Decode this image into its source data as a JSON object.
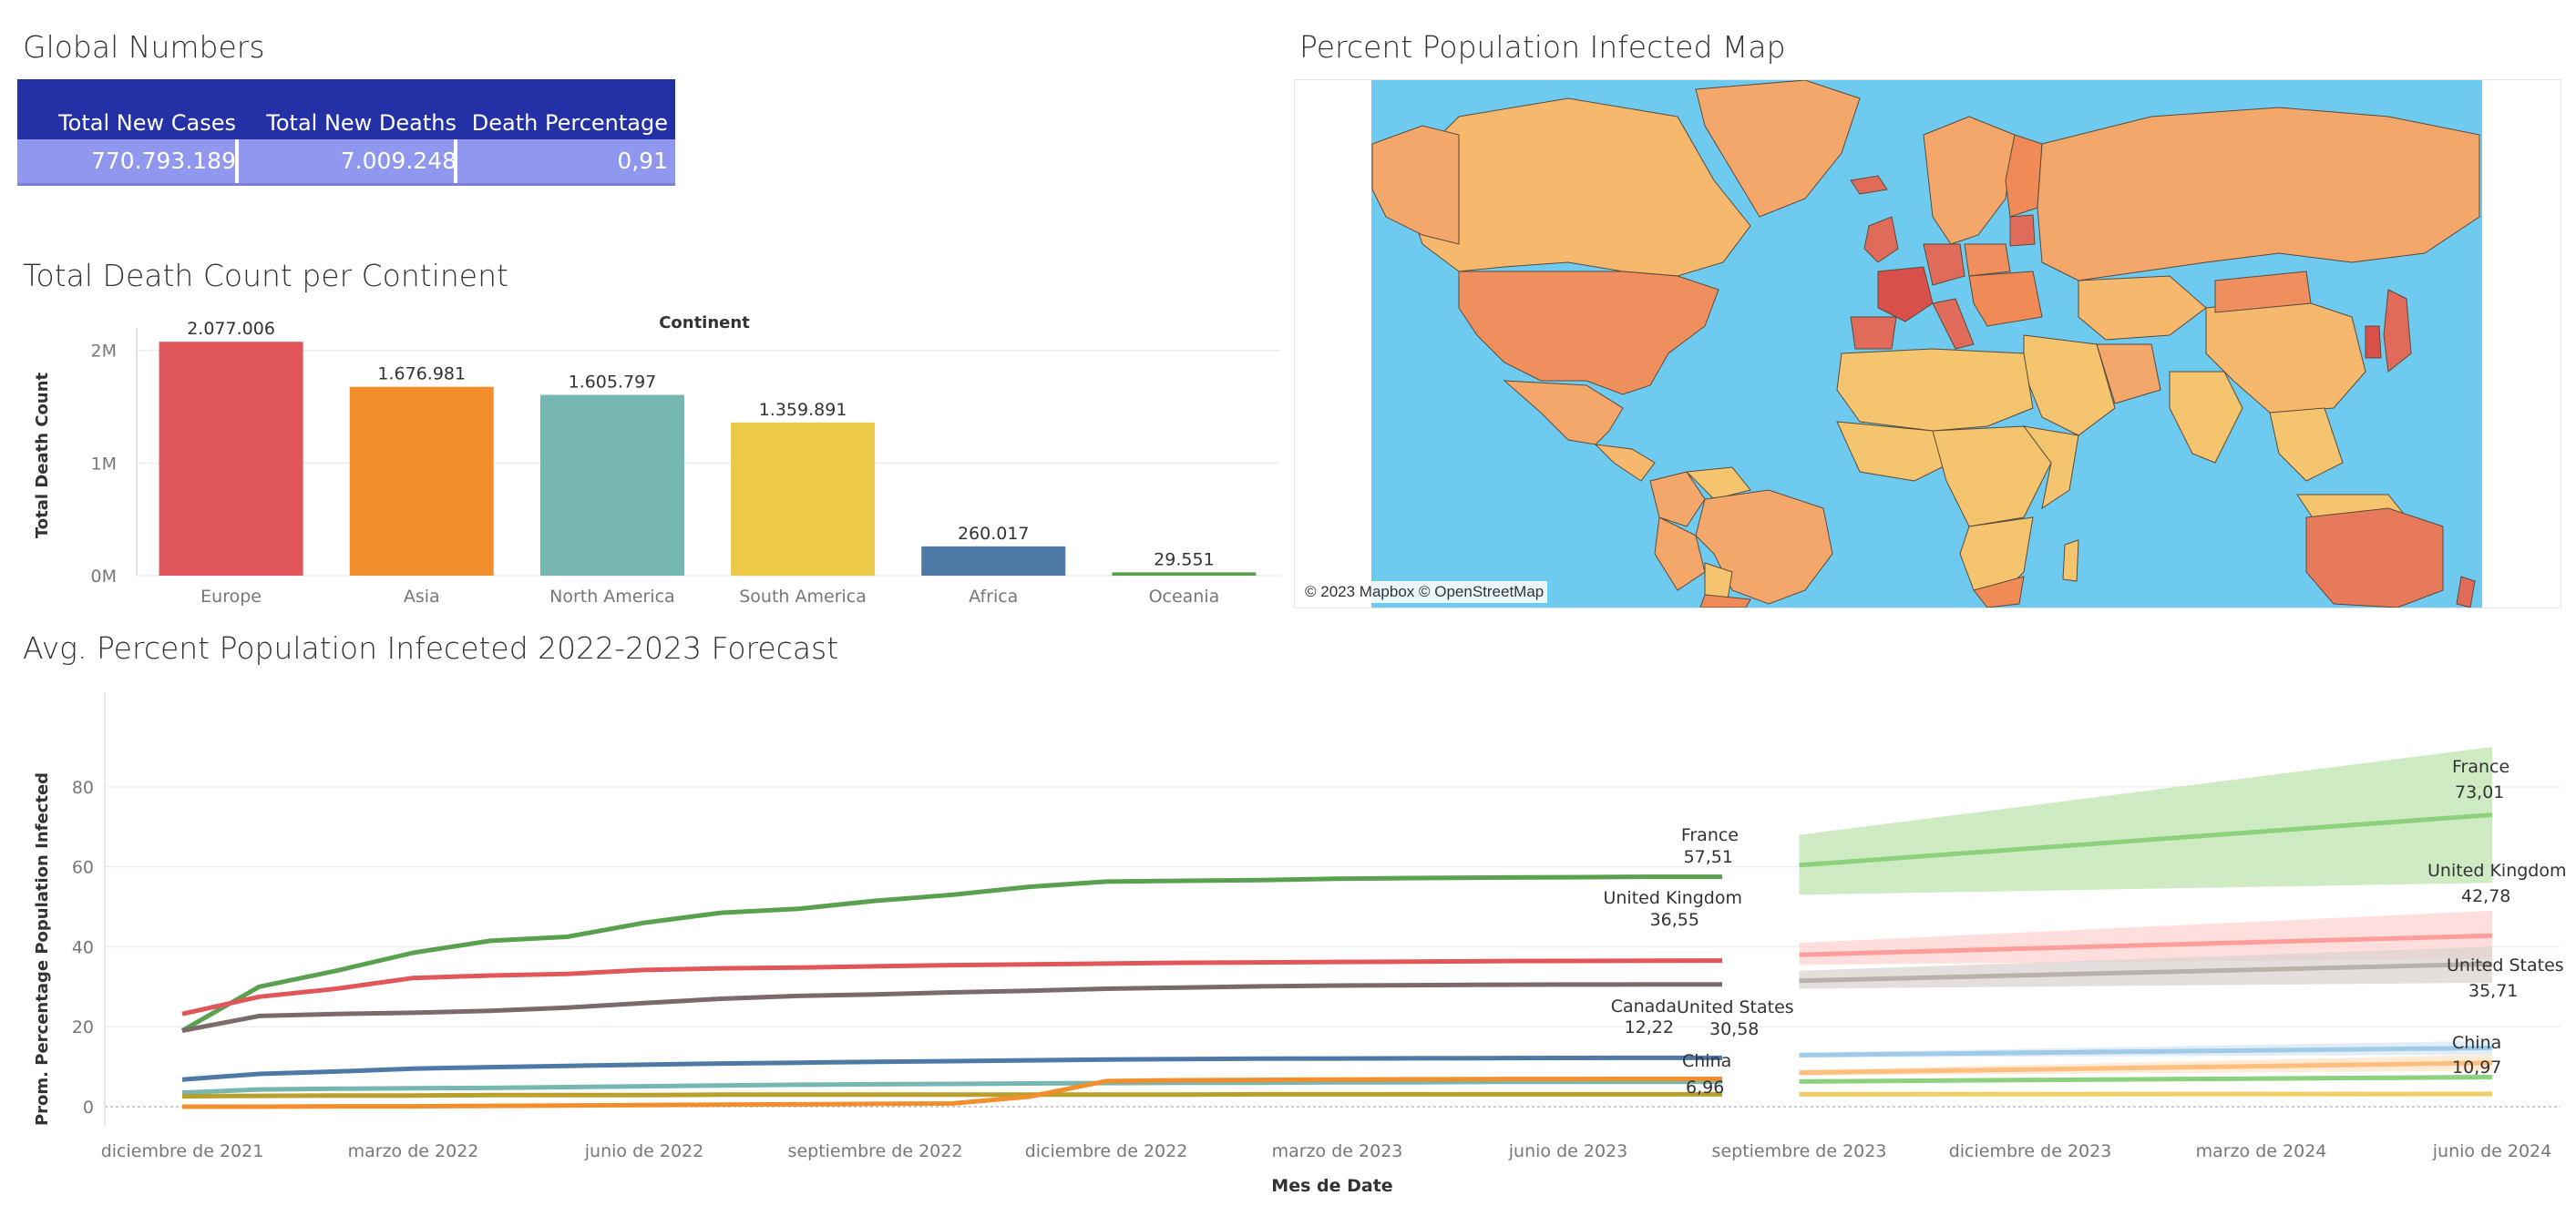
{
  "global_numbers": {
    "title": "Global Numbers",
    "headers": [
      "Total New Cases",
      "Total New Deaths",
      "Death Percentage"
    ],
    "values": [
      "770.793.189",
      "7.009.248",
      "0,91"
    ],
    "header_color": "#2330a6",
    "row_color": "#8f97ef"
  },
  "death_chart": {
    "title": "Total Death Count per Continent",
    "legend_title": "Continent",
    "ylabel": "Total Death Count",
    "yticks": [
      "0M",
      "1M",
      "2M"
    ],
    "chart_data": {
      "type": "bar",
      "categories": [
        "Europe",
        "Asia",
        "North America",
        "South America",
        "Africa",
        "Oceania"
      ],
      "values": [
        2077006,
        1676981,
        1605797,
        1359891,
        260017,
        29551
      ],
      "labels": [
        "2.077.006",
        "1.676.981",
        "1.605.797",
        "1.359.891",
        "260.017",
        "29.551"
      ],
      "colors": [
        "#e0555a",
        "#f28e2c",
        "#76b7b2",
        "#edc948",
        "#4e79a7",
        "#59a14f"
      ],
      "ylim": [
        0,
        2200000
      ]
    }
  },
  "map": {
    "title": "Percent Population Infected Map",
    "attribution": "© 2023 Mapbox © OpenStreetMap",
    "ocean_color": "#6ecbef"
  },
  "forecast": {
    "title": "Avg. Percent Population Infeceted 2022-2023 Forecast",
    "xlabel": "Mes de Date",
    "ylabel": "Prom. Percentage Population Infected",
    "yticks": [
      "0",
      "20",
      "40",
      "60",
      "80"
    ],
    "xticks": [
      "diciembre de 2021",
      "marzo de 2022",
      "junio de 2022",
      "septiembre de 2022",
      "diciembre de 2022",
      "marzo de 2023",
      "junio de 2023",
      "septiembre de 2023",
      "diciembre de 2023",
      "marzo de 2024",
      "junio de 2024"
    ],
    "chart_data": {
      "type": "line",
      "x": [
        "2021-12",
        "2022-01",
        "2022-02",
        "2022-03",
        "2022-04",
        "2022-05",
        "2022-06",
        "2022-07",
        "2022-08",
        "2022-09",
        "2022-10",
        "2022-11",
        "2022-12",
        "2023-01",
        "2023-02",
        "2023-03",
        "2023-04",
        "2023-05",
        "2023-06",
        "2023-07",
        "2023-08"
      ],
      "ylim": [
        0,
        90
      ],
      "series": [
        {
          "name": "France",
          "color": "#59a14f",
          "values": [
            19,
            30,
            34,
            38.5,
            41.5,
            42.5,
            46,
            48.5,
            49.5,
            51.5,
            53,
            55,
            56.3,
            56.5,
            56.7,
            57,
            57.2,
            57.3,
            57.4,
            57.5,
            57.51
          ]
        },
        {
          "name": "United Kingdom",
          "color": "#e15759",
          "values": [
            23.2,
            27.5,
            29.5,
            32.2,
            32.8,
            33.2,
            34.2,
            34.6,
            34.8,
            35.1,
            35.4,
            35.6,
            35.8,
            36,
            36.1,
            36.2,
            36.3,
            36.4,
            36.45,
            36.5,
            36.55
          ]
        },
        {
          "name": "United States",
          "color": "#7b6a6a",
          "values": [
            19,
            22.7,
            23.2,
            23.5,
            24,
            24.8,
            25.9,
            27,
            27.7,
            28.1,
            28.6,
            29,
            29.5,
            29.8,
            30.1,
            30.3,
            30.4,
            30.5,
            30.55,
            30.57,
            30.58
          ]
        },
        {
          "name": "Canada",
          "color": "#4e79a7",
          "values": [
            6.8,
            8.2,
            8.8,
            9.5,
            9.9,
            10.2,
            10.5,
            10.8,
            11,
            11.2,
            11.4,
            11.6,
            11.8,
            11.9,
            12,
            12.05,
            12.1,
            12.15,
            12.2,
            12.21,
            12.22
          ]
        },
        {
          "name": "",
          "color": "#76b7b2",
          "values": [
            3.5,
            4.3,
            4.5,
            4.6,
            4.7,
            4.9,
            5.1,
            5.3,
            5.5,
            5.6,
            5.7,
            5.8,
            5.9,
            6,
            6,
            6.1,
            6.1,
            6.2,
            6.2,
            6.2,
            6.2
          ]
        },
        {
          "name": "",
          "color": "#b8a02a",
          "values": [
            2.6,
            2.7,
            2.8,
            2.8,
            2.9,
            2.9,
            2.9,
            3,
            3,
            3,
            3,
            3,
            3,
            3,
            3.1,
            3.1,
            3.1,
            3.1,
            3.1,
            3.1,
            3.1
          ]
        },
        {
          "name": "China",
          "color": "#f28e2c",
          "values": [
            0,
            0,
            0.1,
            0.1,
            0.2,
            0.3,
            0.4,
            0.5,
            0.6,
            0.7,
            0.8,
            2.5,
            6.4,
            6.6,
            6.7,
            6.8,
            6.85,
            6.9,
            6.92,
            6.95,
            6.96
          ]
        }
      ],
      "forecast": {
        "x": [
          "2023-09",
          "2024-06"
        ],
        "series": [
          {
            "name": "France",
            "color": "#8ed17c",
            "band_color": "#b9e3ab",
            "start": 60.4,
            "end": 73.01,
            "band_start": [
              53,
              68
            ],
            "band_end": [
              56,
              90
            ]
          },
          {
            "name": "United Kingdom",
            "color": "#ff9d9a",
            "band_color": "#ffd1cf",
            "start": 38,
            "end": 42.78,
            "band_start": [
              35.5,
              41
            ],
            "band_end": [
              37,
              49
            ]
          },
          {
            "name": "United States",
            "color": "#bab0ac",
            "band_color": "#d9d2cf",
            "start": 31.5,
            "end": 35.71,
            "band_start": [
              29.5,
              34
            ],
            "band_end": [
              31,
              40
            ]
          },
          {
            "name": "",
            "color": "#a0cbe8",
            "band_color": "#d5e7f4",
            "start": 12.9,
            "end": 14.7,
            "band_start": [
              12.3,
              13.5
            ],
            "band_end": [
              13,
              16.5
            ]
          },
          {
            "name": "",
            "color": "#ffbe7d",
            "band_color": "#ffe3c4",
            "start": 8.5,
            "end": 10.97,
            "band_start": [
              7.8,
              9.2
            ],
            "band_end": [
              9,
              13
            ]
          },
          {
            "name": "",
            "color": "#8cd17d",
            "band_color": "#cfe9c6",
            "start": 6.3,
            "end": 7.4,
            "band_start": [
              6,
              6.7
            ],
            "band_end": [
              6.8,
              8
            ]
          },
          {
            "name": "",
            "color": "#f1ce63",
            "band_color": "#f8e7b0",
            "start": 3.1,
            "end": 3.2,
            "band_start": [
              3,
              3.2
            ],
            "band_end": [
              3,
              3.4
            ]
          }
        ]
      }
    },
    "labels": {
      "france_hist": {
        "name": "France",
        "value": "57,51"
      },
      "uk_hist": {
        "name": "United Kingdom",
        "value": "36,55"
      },
      "us_hist": {
        "name": "United States",
        "value": "30,58"
      },
      "canada_hist": {
        "name": "Canada",
        "value": "12,22"
      },
      "china_hist": {
        "name": "China",
        "value": "6,96"
      },
      "france_fc": {
        "name": "France",
        "value": "73,01"
      },
      "uk_fc": {
        "name": "United Kingdom",
        "value": "42,78"
      },
      "us_fc": {
        "name": "United States",
        "value": "35,71"
      },
      "china_fc": {
        "name": "China",
        "value": "10,97"
      }
    }
  }
}
